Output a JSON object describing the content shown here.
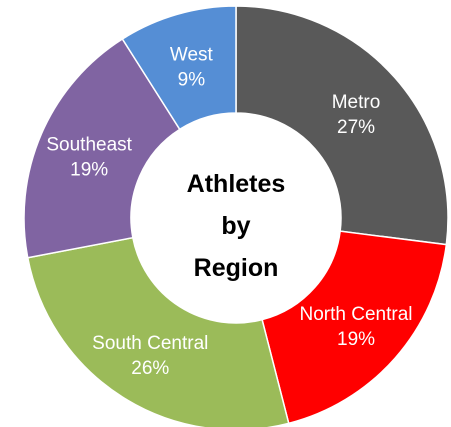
{
  "chart_data": {
    "type": "pie",
    "title_lines": [
      "Athletes",
      "by",
      "Region"
    ],
    "slices": [
      {
        "name": "Metro",
        "label": "27%",
        "value": 27,
        "color": "#595959"
      },
      {
        "name": "North Central",
        "label": "19%",
        "value": 19,
        "color": "#ff0000"
      },
      {
        "name": "South Central",
        "label": "26%",
        "value": 26,
        "color": "#9bbb59"
      },
      {
        "name": "Southeast",
        "label": "19%",
        "value": 19,
        "color": "#8064a2"
      },
      {
        "name": "West",
        "label": "9%",
        "value": 9,
        "color": "#558ed5"
      }
    ]
  }
}
